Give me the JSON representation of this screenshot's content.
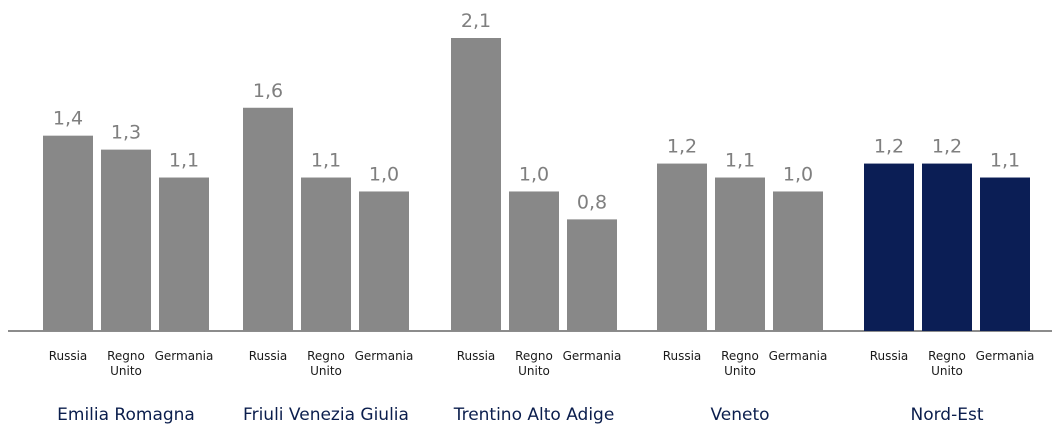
{
  "chart_data": {
    "type": "bar",
    "categories": [
      "Russia",
      "Regno Unito",
      "Germania"
    ],
    "groups": [
      {
        "name": "Emilia Romagna",
        "values": [
          1.4,
          1.3,
          1.1
        ],
        "labels": [
          "1,4",
          "1,3",
          "1,1"
        ],
        "color": "#888888"
      },
      {
        "name": "Friuli Venezia Giulia",
        "values": [
          1.6,
          1.1,
          1.0
        ],
        "labels": [
          "1,6",
          "1,1",
          "1,0"
        ],
        "color": "#888888"
      },
      {
        "name": "Trentino Alto Adige",
        "values": [
          2.1,
          1.0,
          0.8
        ],
        "labels": [
          "2,1",
          "1,0",
          "0,8"
        ],
        "color": "#888888"
      },
      {
        "name": "Veneto",
        "values": [
          1.2,
          1.1,
          1.0
        ],
        "labels": [
          "1,2",
          "1,1",
          "1,0"
        ],
        "color": "#888888"
      },
      {
        "name": "Nord-Est",
        "values": [
          1.2,
          1.2,
          1.1
        ],
        "labels": [
          "1,2",
          "1,2",
          "1,1"
        ],
        "color": "#0b1e55"
      }
    ],
    "value_label_color": "#7f7f7f",
    "group_label_color": "#0b1e4d",
    "ylim": [
      0,
      2.1
    ],
    "grid": false,
    "legend": "none"
  }
}
